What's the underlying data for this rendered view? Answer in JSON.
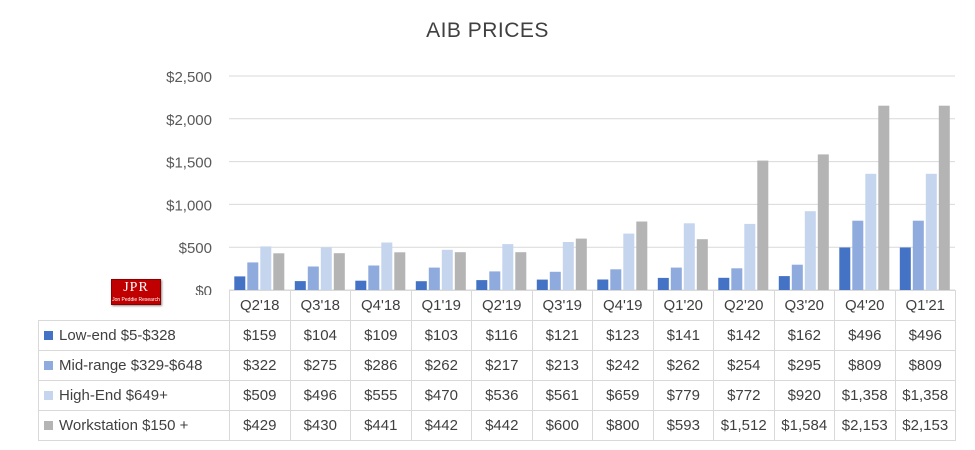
{
  "chart_data": {
    "type": "bar",
    "title": "AIB PRICES",
    "categories": [
      "Q2'18",
      "Q3'18",
      "Q4'18",
      "Q1'19",
      "Q2'19",
      "Q3'19",
      "Q4'19",
      "Q1'20",
      "Q2'20",
      "Q3'20",
      "Q4'20",
      "Q1'21"
    ],
    "ylim": [
      0,
      2500
    ],
    "yticks": [
      0,
      500,
      1000,
      1500,
      2000,
      2500
    ],
    "ytick_labels": [
      "$0",
      "$500",
      "$1,000",
      "$1,500",
      "$2,000",
      "$2,500"
    ],
    "grid": true,
    "legend": "data-table",
    "series": [
      {
        "name": "Low-end $5-$328",
        "color": "#4472c4",
        "values": [
          159,
          104,
          109,
          103,
          116,
          121,
          123,
          141,
          142,
          162,
          496,
          496
        ],
        "labels": [
          "$159",
          "$104",
          "$109",
          "$103",
          "$116",
          "$121",
          "$123",
          "$141",
          "$142",
          "$162",
          "$496",
          "$496"
        ]
      },
      {
        "name": "Mid-range $329-$648",
        "color": "#8faadc",
        "values": [
          322,
          275,
          286,
          262,
          217,
          213,
          242,
          262,
          254,
          295,
          809,
          809
        ],
        "labels": [
          "$322",
          "$275",
          "$286",
          "$262",
          "$217",
          "$213",
          "$242",
          "$262",
          "$254",
          "$295",
          "$809",
          "$809"
        ]
      },
      {
        "name": "High-End $649+",
        "color": "#c5d5ee",
        "values": [
          509,
          496,
          555,
          470,
          536,
          561,
          659,
          779,
          772,
          920,
          1358,
          1358
        ],
        "labels": [
          "$509",
          "$496",
          "$555",
          "$470",
          "$536",
          "$561",
          "$659",
          "$779",
          "$772",
          "$920",
          "$1,358",
          "$1,358"
        ]
      },
      {
        "name": "Workstation $150 +",
        "color": "#b4b4b4",
        "values": [
          429,
          430,
          441,
          442,
          442,
          600,
          800,
          593,
          1512,
          1584,
          2153,
          2153
        ],
        "labels": [
          "$429",
          "$430",
          "$441",
          "$442",
          "$442",
          "$600",
          "$800",
          "$593",
          "$1,512",
          "$1,584",
          "$2,153",
          "$2,153"
        ]
      }
    ]
  },
  "logo": {
    "mark": "JPR",
    "sub": "Jon Peddie Research"
  }
}
